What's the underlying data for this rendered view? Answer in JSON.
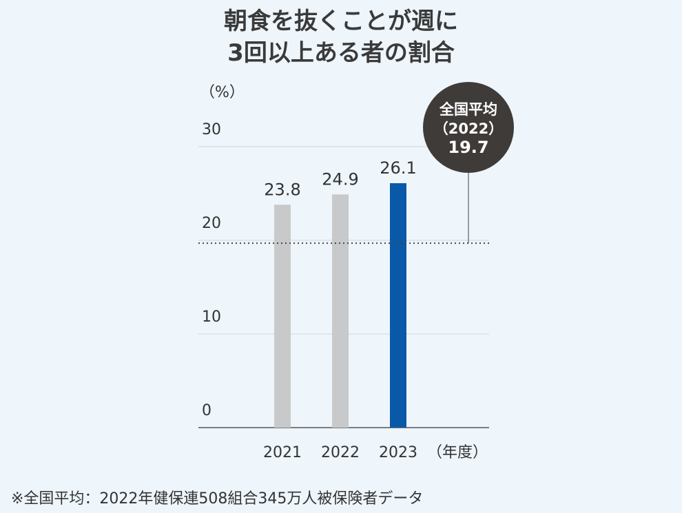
{
  "title_line1": "朝食を抜くことが週に",
  "title_line2": "3回以上ある者の割合",
  "footnote": "※全国平均：2022年健保連508組合345万人被保険者データ",
  "colors": {
    "bar_past": "#c8c9ca",
    "bar_current": "#0a59a8",
    "callout_bg": "#3f3b39",
    "grid": "#cfd8df",
    "axis": "#555555",
    "average_line": "#444444"
  },
  "chart_data": {
    "type": "bar",
    "title": "朝食を抜くことが週に3回以上ある者の割合",
    "ylabel": "（%）",
    "xlabel": "（年度）",
    "ylim": [
      0,
      30
    ],
    "y_ticks": [
      0,
      10,
      20,
      30
    ],
    "categories": [
      "2021",
      "2022",
      "2023"
    ],
    "values": [
      23.8,
      24.9,
      26.1
    ],
    "value_labels": [
      "23.8",
      "24.9",
      "26.1"
    ],
    "highlight_index": 2,
    "grid": true,
    "reference_line": {
      "value": 19.7,
      "style": "dotted",
      "label_lines": [
        "全国平均",
        "（2022）",
        "19.7"
      ]
    }
  }
}
